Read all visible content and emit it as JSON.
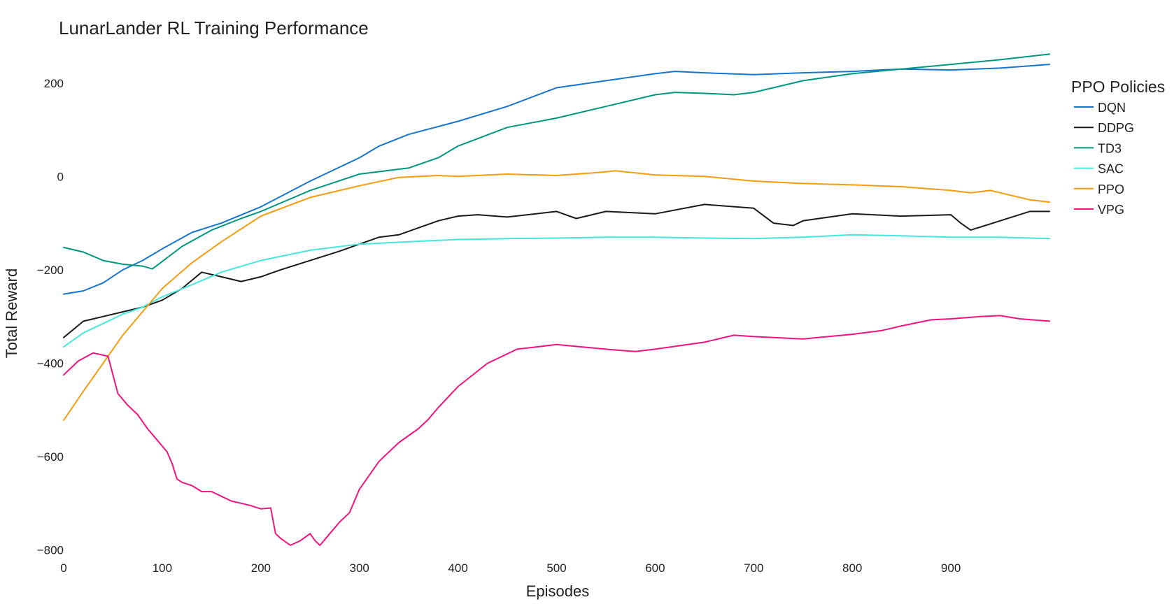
{
  "chart_data": {
    "type": "line",
    "title": "LunarLander RL Training Performance",
    "xlabel": "Episodes",
    "ylabel": "Total Reward",
    "xlim": [
      0,
      1000
    ],
    "ylim": [
      -850,
      300
    ],
    "xticks": [
      0,
      100,
      200,
      300,
      400,
      500,
      600,
      700,
      800,
      900
    ],
    "yticks": [
      200,
      0,
      -200,
      -400,
      -600,
      -800
    ],
    "grid": false,
    "legend": {
      "title": "PPO Policies",
      "placement": "right"
    },
    "series": [
      {
        "name": "DQN",
        "color": "#1874CD",
        "x": [
          0,
          20,
          40,
          60,
          80,
          100,
          130,
          160,
          200,
          250,
          280,
          300,
          320,
          350,
          400,
          450,
          500,
          550,
          600,
          620,
          650,
          700,
          750,
          800,
          850,
          900,
          950,
          1000
        ],
        "y": [
          -252,
          -245,
          -228,
          -200,
          -180,
          -155,
          -120,
          -100,
          -65,
          -10,
          20,
          40,
          65,
          90,
          118,
          150,
          190,
          205,
          220,
          225,
          222,
          218,
          222,
          225,
          230,
          228,
          232,
          240
        ]
      },
      {
        "name": "DDPG",
        "color": "#1a1a1a",
        "x": [
          0,
          20,
          40,
          60,
          80,
          100,
          120,
          140,
          160,
          180,
          200,
          220,
          250,
          280,
          300,
          320,
          340,
          360,
          380,
          400,
          420,
          450,
          500,
          520,
          550,
          600,
          650,
          700,
          720,
          740,
          750,
          800,
          850,
          900,
          910,
          920,
          950,
          980,
          1000
        ],
        "y": [
          -345,
          -310,
          -300,
          -290,
          -280,
          -265,
          -240,
          -205,
          -215,
          -225,
          -215,
          -200,
          -180,
          -160,
          -145,
          -130,
          -125,
          -110,
          -95,
          -85,
          -82,
          -87,
          -75,
          -90,
          -75,
          -80,
          -60,
          -68,
          -100,
          -105,
          -95,
          -80,
          -85,
          -82,
          -100,
          -115,
          -95,
          -75,
          -75
        ]
      },
      {
        "name": "TD3",
        "color": "#009680",
        "x": [
          0,
          20,
          40,
          60,
          80,
          90,
          100,
          120,
          150,
          180,
          200,
          250,
          300,
          350,
          380,
          400,
          450,
          500,
          550,
          600,
          620,
          650,
          680,
          700,
          750,
          800,
          850,
          900,
          950,
          1000
        ],
        "y": [
          -152,
          -162,
          -180,
          -188,
          -192,
          -198,
          -182,
          -150,
          -115,
          -90,
          -75,
          -30,
          5,
          18,
          40,
          65,
          105,
          125,
          150,
          175,
          180,
          178,
          175,
          180,
          205,
          220,
          230,
          240,
          250,
          262
        ]
      },
      {
        "name": "SAC",
        "color": "#48E5DA",
        "x": [
          0,
          20,
          40,
          60,
          80,
          100,
          130,
          160,
          200,
          250,
          300,
          350,
          400,
          450,
          500,
          550,
          600,
          650,
          700,
          750,
          800,
          850,
          900,
          950,
          1000
        ],
        "y": [
          -365,
          -335,
          -315,
          -295,
          -280,
          -258,
          -232,
          -205,
          -180,
          -158,
          -145,
          -140,
          -135,
          -133,
          -132,
          -130,
          -130,
          -132,
          -133,
          -130,
          -125,
          -127,
          -130,
          -130,
          -133
        ]
      },
      {
        "name": "PPO",
        "color": "#F39C12",
        "x": [
          0,
          20,
          40,
          60,
          80,
          100,
          130,
          160,
          200,
          250,
          300,
          340,
          380,
          400,
          450,
          500,
          540,
          560,
          600,
          650,
          700,
          750,
          800,
          850,
          900,
          920,
          940,
          950,
          980,
          1000
        ],
        "y": [
          -522,
          -460,
          -400,
          -340,
          -290,
          -240,
          -185,
          -140,
          -85,
          -45,
          -20,
          -2,
          2,
          0,
          5,
          2,
          8,
          12,
          3,
          0,
          -10,
          -15,
          -18,
          -22,
          -30,
          -35,
          -30,
          -35,
          -50,
          -55
        ]
      },
      {
        "name": "VPG",
        "color": "#F0147F",
        "x": [
          0,
          15,
          30,
          45,
          55,
          65,
          75,
          85,
          95,
          105,
          110,
          115,
          120,
          130,
          140,
          150,
          160,
          170,
          180,
          190,
          200,
          210,
          215,
          220,
          230,
          240,
          250,
          255,
          260,
          270,
          280,
          290,
          300,
          310,
          320,
          340,
          350,
          360,
          370,
          380,
          400,
          430,
          460,
          480,
          500,
          550,
          580,
          600,
          650,
          680,
          700,
          750,
          800,
          830,
          850,
          880,
          900,
          930,
          950,
          970,
          1000
        ],
        "y": [
          -425,
          -395,
          -378,
          -385,
          -465,
          -490,
          -510,
          -540,
          -565,
          -590,
          -615,
          -648,
          -655,
          -662,
          -675,
          -675,
          -685,
          -695,
          -700,
          -705,
          -712,
          -710,
          -765,
          -775,
          -790,
          -780,
          -765,
          -780,
          -790,
          -765,
          -740,
          -720,
          -670,
          -640,
          -610,
          -570,
          -555,
          -540,
          -520,
          -495,
          -450,
          -400,
          -370,
          -365,
          -360,
          -370,
          -375,
          -370,
          -355,
          -340,
          -343,
          -348,
          -338,
          -330,
          -320,
          -307,
          -305,
          -300,
          -298,
          -305,
          -310
        ]
      }
    ]
  }
}
